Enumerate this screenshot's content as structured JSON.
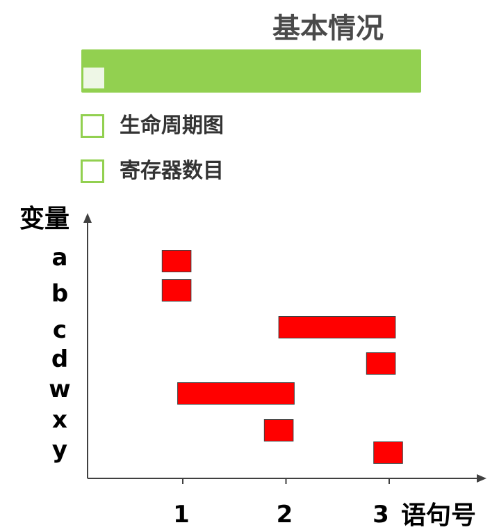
{
  "header": {
    "title": "基本情况"
  },
  "bullets": [
    {
      "label": "生命周期图"
    },
    {
      "label": "寄存器数目"
    }
  ],
  "colors": {
    "accent": "#92d050",
    "bar": "#ff0000"
  },
  "chart_data": {
    "type": "gantt",
    "ylabel": "变量",
    "xlabel": "语句号",
    "categories": [
      "a",
      "b",
      "c",
      "d",
      "w",
      "x",
      "y"
    ],
    "x_ticks": [
      "1",
      "2",
      "3"
    ],
    "xlim": [
      0.1,
      3.9
    ],
    "intervals": [
      {
        "var": "a",
        "start": 0.8,
        "end": 1.08
      },
      {
        "var": "b",
        "start": 0.8,
        "end": 1.08
      },
      {
        "var": "c",
        "start": 1.93,
        "end": 3.06
      },
      {
        "var": "d",
        "start": 2.78,
        "end": 3.06
      },
      {
        "var": "w",
        "start": 0.95,
        "end": 2.08
      },
      {
        "var": "x",
        "start": 1.79,
        "end": 2.07
      },
      {
        "var": "y",
        "start": 2.85,
        "end": 3.13
      }
    ]
  }
}
